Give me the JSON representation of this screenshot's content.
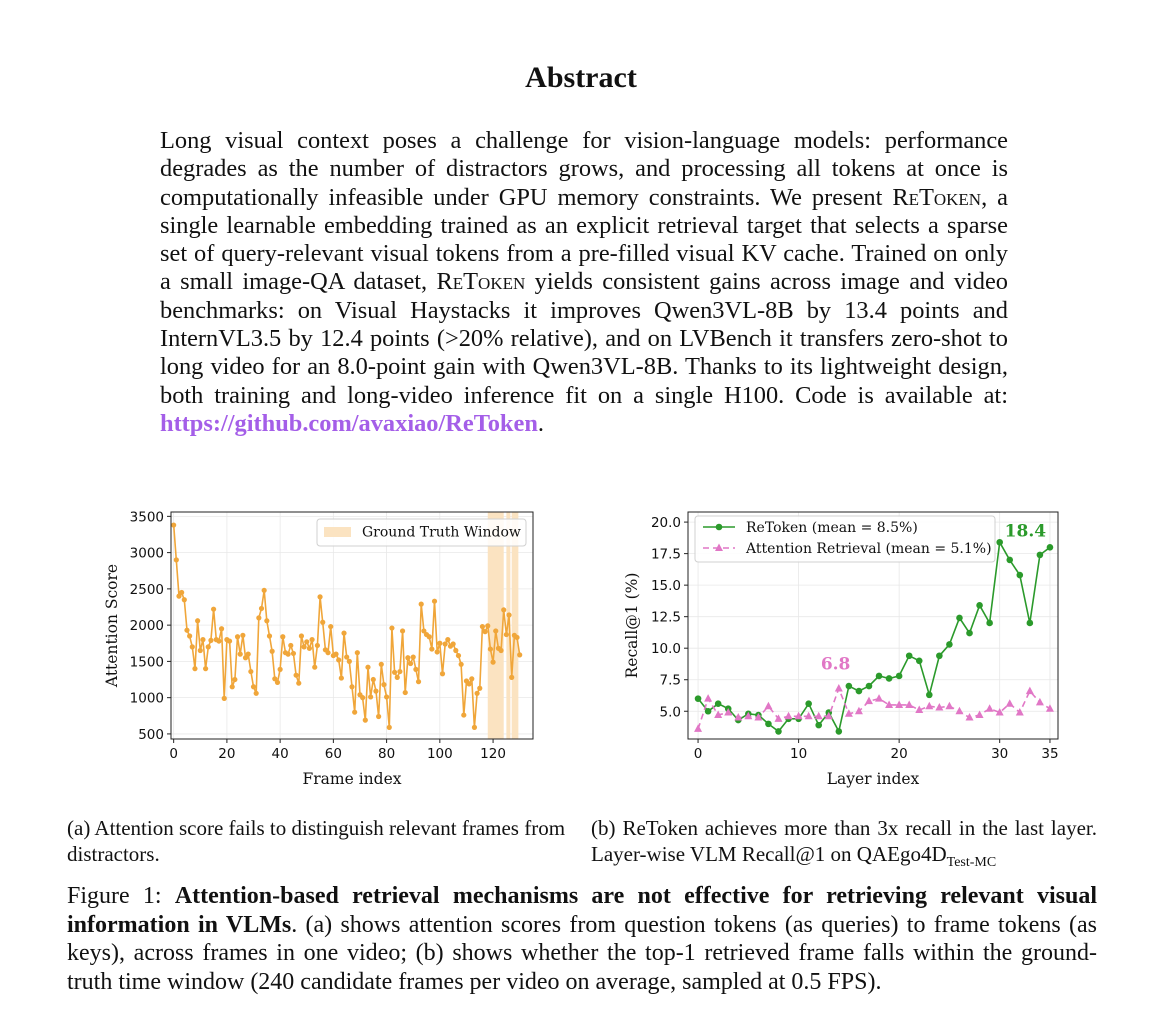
{
  "title": "Abstract",
  "abstract": {
    "p1": "Long visual context poses a challenge for vision-language models: performance degrades as the number of distractors grows, and processing all tokens at once is computationally infeasible under GPU memory constraints. We present ",
    "method": "ReToken",
    "p2": ", a single learnable embedding trained as an explicit retrieval target that selects a sparse set of query-relevant visual tokens from a pre-filled visual KV cache. Trained on only a small image-QA dataset, ",
    "p3": " yields consistent gains across image and video benchmarks: on Visual Haystacks it improves Qwen3VL-8B by 13.4 points and InternVL3.5 by 12.4 points (>20% relative), and on LVBench it transfers zero-shot to long video for an 8.0-point gain with Qwen3VL-8B. Thanks to its lightweight design, both training and long-video inference fit on a single H100. Code is available at: ",
    "link": "https://github.com/avaxiao/ReToken",
    "end": "."
  },
  "chart_data": [
    {
      "type": "line",
      "xlabel": "Frame index",
      "ylabel": "Attention Score",
      "xlim": [
        -1,
        135
      ],
      "ylim": [
        430,
        3560
      ],
      "xticks": [
        "0",
        "20",
        "40",
        "60",
        "80",
        "100",
        "120"
      ],
      "xtick_values": [
        0,
        20,
        40,
        60,
        80,
        100,
        120
      ],
      "yticks": [
        "500",
        "1000",
        "1500",
        "2000",
        "2500",
        "3000",
        "3500"
      ],
      "ytick_values": [
        500,
        1000,
        1500,
        2000,
        2500,
        3000,
        3500
      ],
      "grid": true,
      "legend_position": "top-right",
      "legend": "Ground Truth Window",
      "colors": {
        "line": "#f0a63a",
        "window": "#fbe3c1"
      },
      "gt_window": [
        [
          118,
          124
        ],
        [
          125,
          126.5
        ],
        [
          127,
          129.5
        ]
      ],
      "series": [
        {
          "values": [
            3380,
            2900,
            2400,
            2450,
            2350,
            1930,
            1850,
            1700,
            1400,
            2060,
            1650,
            1800,
            1400,
            1700,
            1790,
            2220,
            1800,
            1780,
            1950,
            990,
            1800,
            1780,
            1150,
            1250,
            1840,
            1600,
            1860,
            1550,
            1600,
            1360,
            1150,
            1060,
            2100,
            2230,
            2480,
            2060,
            1850,
            1640,
            1260,
            1210,
            1390,
            1840,
            1620,
            1600,
            1720,
            1610,
            1310,
            1200,
            1850,
            1700,
            1770,
            1680,
            1800,
            1420,
            1720,
            2390,
            2040,
            1660,
            1620,
            1980,
            1580,
            1600,
            1520,
            1270,
            1890,
            1560,
            1500,
            1150,
            800,
            1620,
            1040,
            1000,
            690,
            1420,
            1010,
            1250,
            1090,
            740,
            1460,
            1180,
            1010,
            590,
            1960,
            1350,
            1280,
            1360,
            1920,
            1070,
            1550,
            1470,
            1560,
            1390,
            1220,
            2290,
            1920,
            1870,
            1840,
            1670,
            2330,
            1630,
            1750,
            1330,
            1740,
            1800,
            1710,
            1740,
            1650,
            1580,
            1460,
            760,
            1230,
            1190,
            1260,
            590,
            1060,
            1130,
            1980,
            1910,
            1990,
            1670,
            1490,
            1920,
            1680,
            1650,
            2210,
            1870,
            2140,
            1280,
            1860,
            1830,
            1590
          ]
        }
      ]
    },
    {
      "type": "line",
      "xlabel": "Layer index",
      "ylabel": "Recall@1 (%)",
      "xlim": [
        -1,
        35.8
      ],
      "ylim": [
        2.8,
        20.8
      ],
      "xticks": [
        "0",
        "10",
        "20",
        "30",
        "35"
      ],
      "xtick_values": [
        0,
        10,
        20,
        30,
        35
      ],
      "yticks": [
        "5.0",
        "7.5",
        "10.0",
        "12.5",
        "15.0",
        "17.5",
        "20.0"
      ],
      "ytick_values": [
        5.0,
        7.5,
        10.0,
        12.5,
        15.0,
        17.5,
        20.0
      ],
      "grid": true,
      "legend_position": "top-left",
      "series": [
        {
          "name": "ReToken (mean = 8.5%)",
          "color": "#2b9a2b",
          "marker": "circle",
          "dash": "solid",
          "values": [
            6.0,
            5.0,
            5.6,
            5.2,
            4.3,
            4.8,
            4.7,
            4.0,
            3.4,
            4.4,
            4.4,
            5.6,
            3.9,
            4.9,
            3.4,
            7.0,
            6.6,
            7.0,
            7.8,
            7.6,
            7.8,
            9.4,
            9.0,
            6.3,
            9.4,
            10.3,
            12.4,
            11.2,
            13.4,
            12.0,
            18.4,
            17.0,
            15.8,
            12.0,
            17.4,
            18.0
          ]
        },
        {
          "name": "Attention Retrieval (mean = 5.1%)",
          "color": "#e177c6",
          "marker": "triangle",
          "dash": "dashed",
          "values": [
            3.6,
            6.0,
            4.7,
            4.9,
            4.5,
            4.6,
            4.5,
            5.4,
            4.4,
            4.6,
            4.6,
            4.6,
            4.6,
            4.6,
            6.8,
            4.8,
            5.0,
            5.8,
            6.0,
            5.5,
            5.5,
            5.5,
            5.1,
            5.4,
            5.3,
            5.4,
            5.0,
            4.5,
            4.7,
            5.2,
            4.9,
            5.6,
            4.9,
            6.6,
            5.7,
            5.2
          ]
        }
      ],
      "annotations": [
        {
          "text": "18.4",
          "x": 30,
          "y": 18.4,
          "color": "#2b9a2b"
        },
        {
          "text": "6.8",
          "x": 14,
          "y": 6.8,
          "color": "#e177c6"
        }
      ]
    }
  ],
  "captions": {
    "a": "(a) Attention score fails to distinguish relevant frames from distractors.",
    "b_main": "(b) ReToken achieves more than 3x recall in the last layer. Layer-wise VLM Recall@1 on QAEgo4D",
    "b_sub": "Test-MC"
  },
  "figure_caption": {
    "label": "Figure 1: ",
    "bold": "Attention-based retrieval mechanisms are not effective for retrieving relevant visual information in VLMs",
    "rest": ". (a) shows attention scores from question tokens (as queries) to frame tokens (as keys), across frames in one video; (b) shows whether the top-1 retrieved frame falls within the ground-truth time window (240 candidate frames per video on average, sampled at 0.5 FPS)."
  }
}
